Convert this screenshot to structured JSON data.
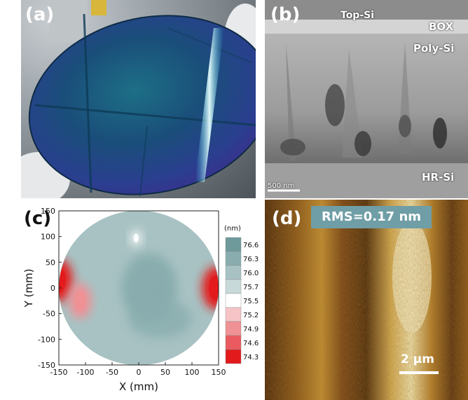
{
  "figure": {
    "panel_a": {
      "label": "(a)"
    },
    "panel_b": {
      "label": "(b)",
      "layers": {
        "top_si": "Top-Si",
        "box": "BOX",
        "poly_si": "Poly-Si",
        "hr_si": "HR-Si"
      },
      "scale_bar": "500 nm"
    },
    "panel_c": {
      "label": "(c)"
    },
    "panel_d": {
      "label": "(d)",
      "rms": "RMS=0.17 nm",
      "scale_bar": "2 μm"
    }
  },
  "chart_data": {
    "type": "heatmap",
    "title": "",
    "xlabel": "X (mm)",
    "ylabel": "Y (mm)",
    "xlim": [
      -150,
      150
    ],
    "ylim": [
      -150,
      150
    ],
    "x_ticks": [
      -150,
      -100,
      -50,
      0,
      50,
      100,
      150
    ],
    "y_ticks": [
      150,
      100,
      50,
      0,
      -50,
      -100,
      -150
    ],
    "colorbar": {
      "unit": "(nm)",
      "levels": [
        76.6,
        76.3,
        76.0,
        75.7,
        75.5,
        75.2,
        74.9,
        74.6,
        74.3
      ],
      "colors": [
        "#6e9a9c",
        "#89adae",
        "#a8c2c3",
        "#c7d9d9",
        "#ffffff",
        "#f6c4c6",
        "#f09195",
        "#ea5a60",
        "#e31a1c"
      ]
    },
    "wafer_diameter_mm": 300,
    "features": [
      {
        "description": "thin region",
        "x": -150,
        "y": 15,
        "value": 74.3
      },
      {
        "description": "thin region",
        "x": -110,
        "y": -25,
        "value": 74.9
      },
      {
        "description": "thin region",
        "x": 145,
        "y": 0,
        "value": 74.3
      },
      {
        "description": "thin spot",
        "x": -5,
        "y": 97,
        "value": 75.5
      }
    ]
  },
  "colors": {
    "wafer_blue": "#1f5c8a",
    "wafer_cyan": "#2ec5d8",
    "rms_box": "#6f9ea6",
    "afm_dark": "#4a2505",
    "afm_light": "#f5e3a0"
  }
}
